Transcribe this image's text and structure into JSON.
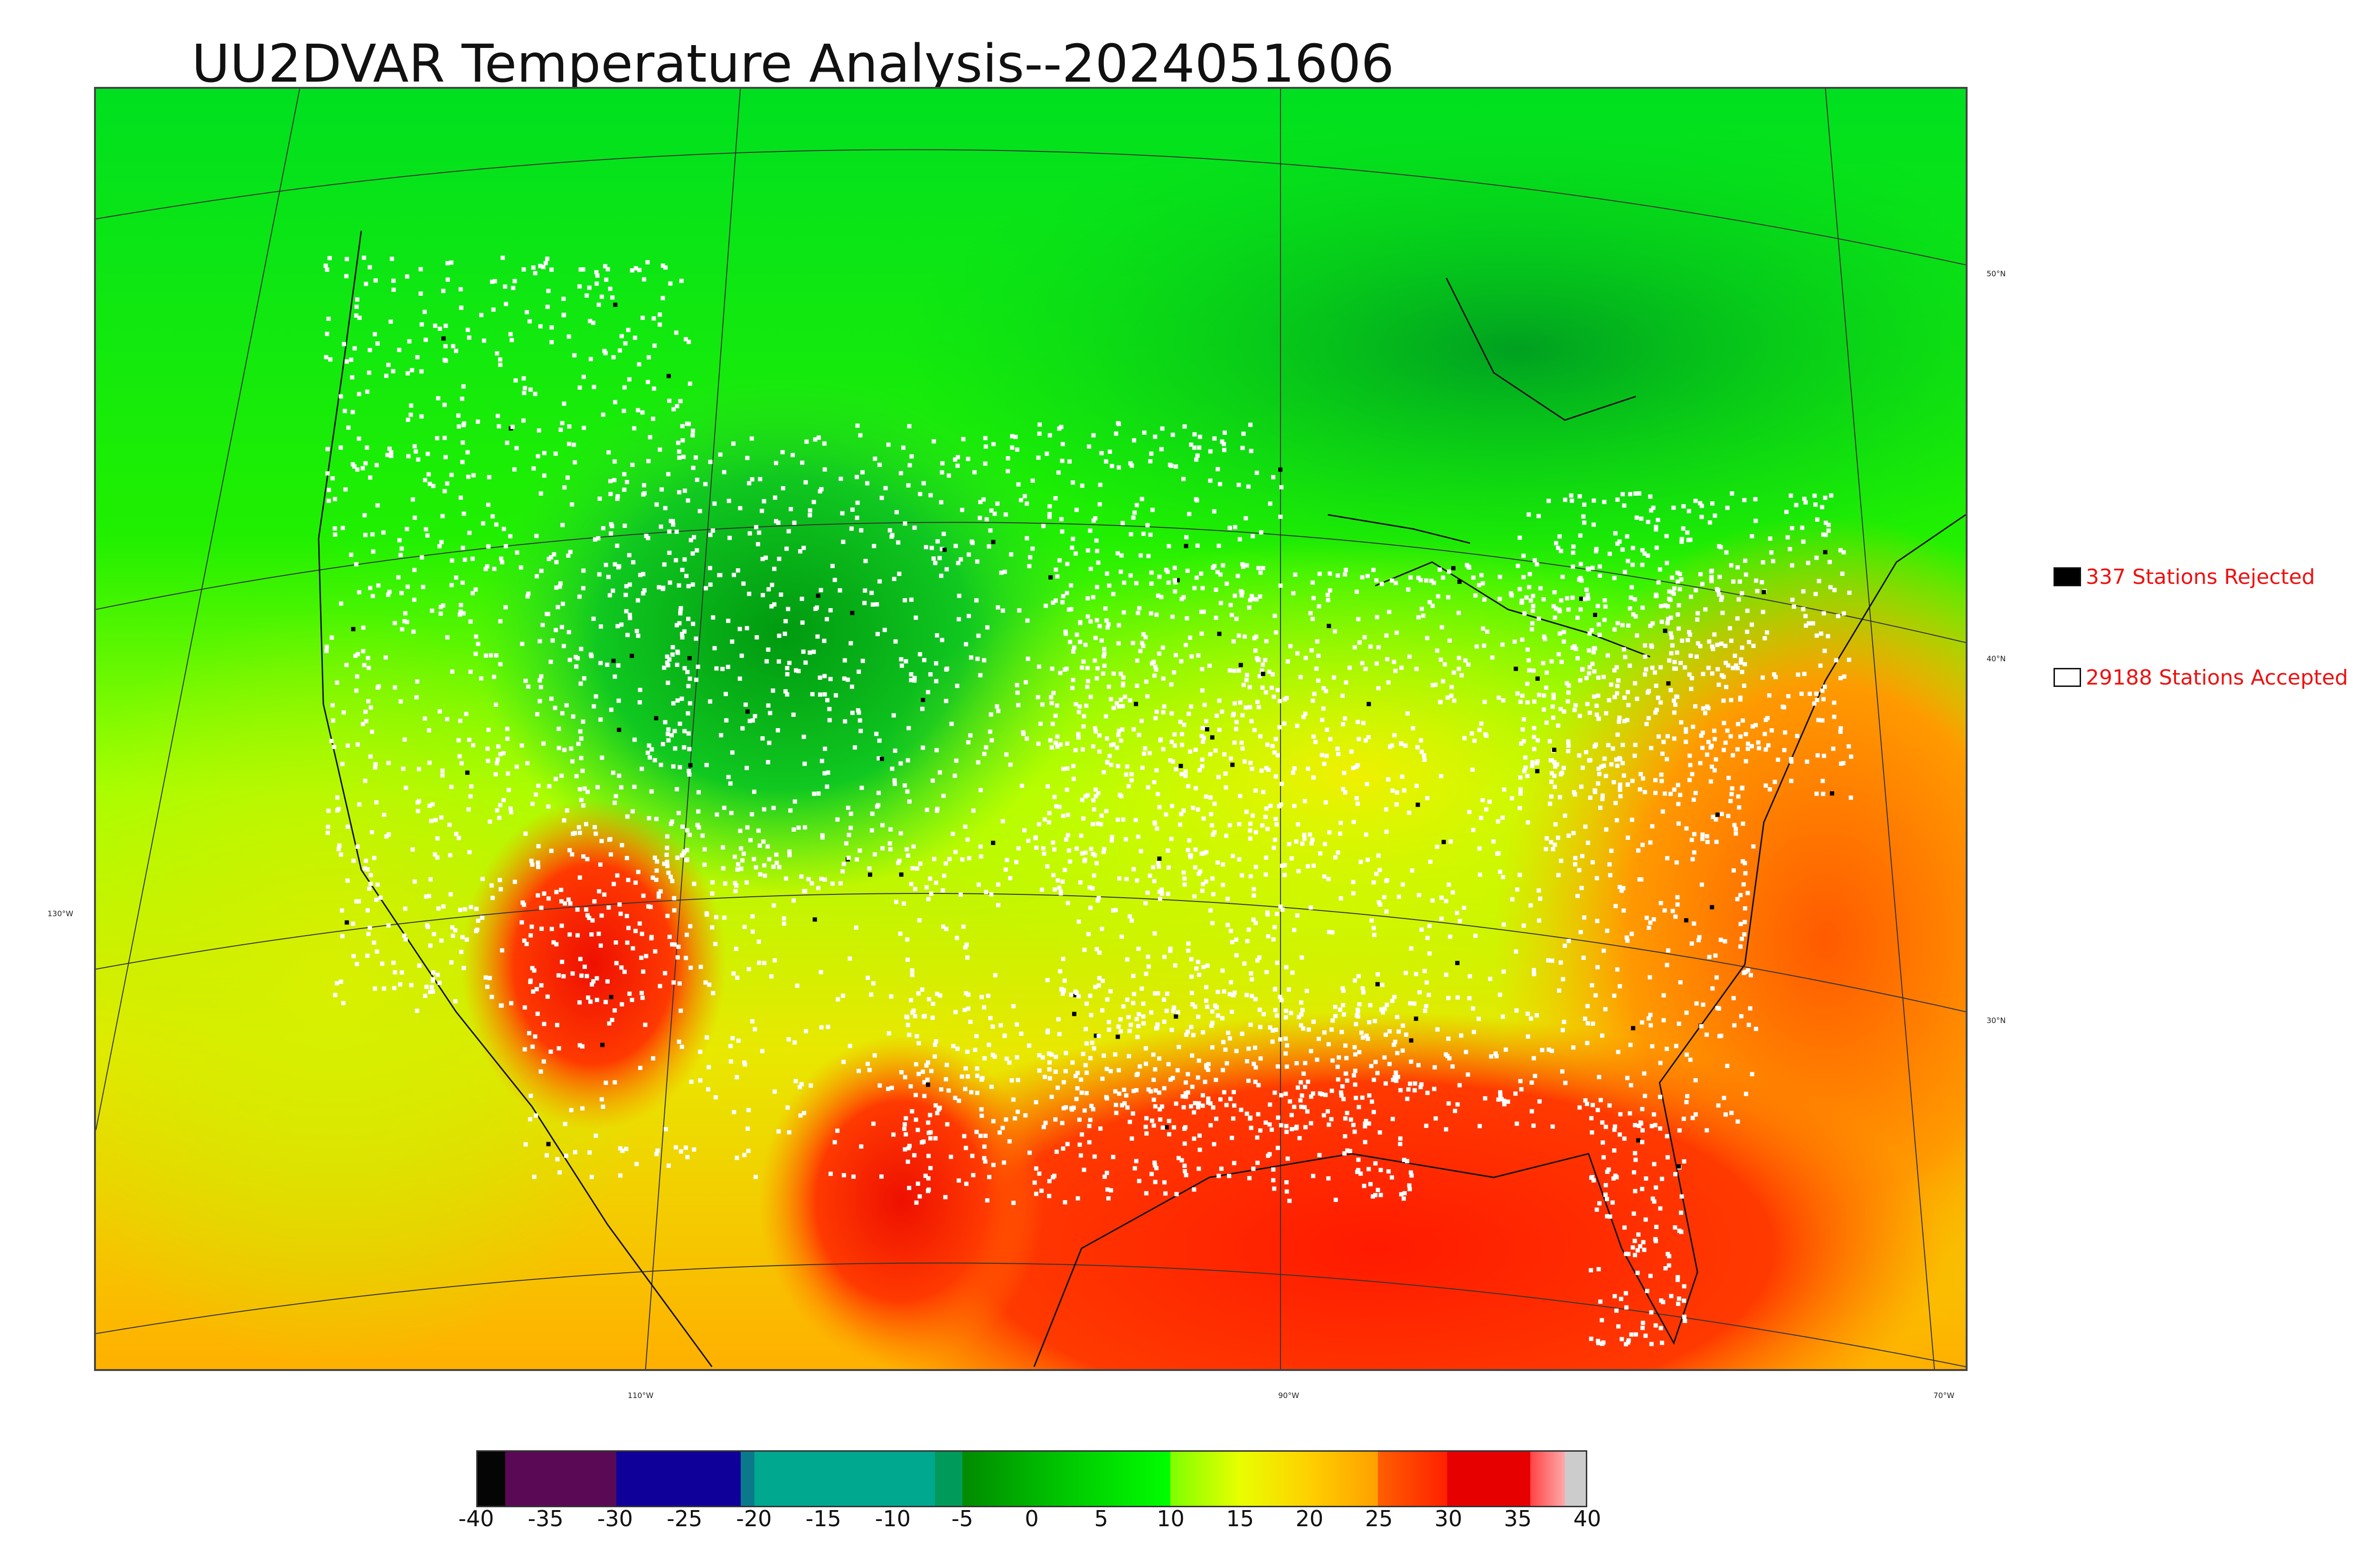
{
  "title": "UU2DVAR Temperature Analysis--2024051606",
  "map": {
    "lat_labels": [
      "50°N",
      "40°N",
      "30°N"
    ],
    "lon_labels": [
      "130°W",
      "110°W",
      "90°W",
      "70°W"
    ]
  },
  "legend": {
    "rejected": {
      "count": "337",
      "label": "337 Stations Rejected",
      "swatch_color": "#000000"
    },
    "accepted": {
      "count": "29188",
      "label": "29188 Stations Accepted",
      "swatch_color": "#ffffff"
    }
  },
  "colorbar": {
    "min": -40,
    "max": 40,
    "ticks": [
      "-40",
      "-35",
      "-30",
      "-25",
      "-20",
      "-15",
      "-10",
      "-5",
      "0",
      "5",
      "10",
      "15",
      "20",
      "25",
      "30",
      "35",
      "40"
    ],
    "segments": [
      {
        "from": -40,
        "to": -38,
        "color": "#050505"
      },
      {
        "from": -38,
        "to": -30,
        "color": "#5a0a55"
      },
      {
        "from": -30,
        "to": -21,
        "color": "#0f009a"
      },
      {
        "from": -21,
        "to": -20,
        "color": "#0a7a8a"
      },
      {
        "from": -20,
        "to": -7,
        "color": "#00a890"
      },
      {
        "from": -7,
        "to": -5,
        "color": "#009a5a"
      },
      {
        "from": -5,
        "to": 10,
        "gradient": [
          "#008a00",
          "#00c800",
          "#00ff00"
        ]
      },
      {
        "from": 10,
        "to": 25,
        "gradient": [
          "#7fff00",
          "#e8ff00",
          "#ffd000",
          "#ffa000"
        ]
      },
      {
        "from": 25,
        "to": 30,
        "gradient": [
          "#ff6000",
          "#ff2000"
        ]
      },
      {
        "from": 30,
        "to": 36,
        "color": "#e60000"
      },
      {
        "from": 36,
        "to": 38.5,
        "gradient": [
          "#ff4444",
          "#ffaaaa"
        ]
      },
      {
        "from": 38.5,
        "to": 40,
        "color": "#cccccc"
      }
    ]
  }
}
